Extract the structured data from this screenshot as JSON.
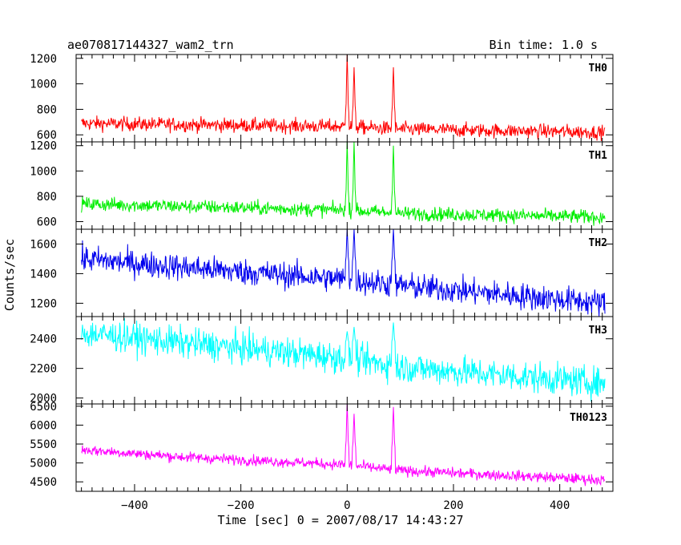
{
  "header": {
    "title": "ae070817144327_wam2_trn",
    "bin_time": "Bin time: 1.0 s"
  },
  "chart_data": {
    "type": "line",
    "x_axis": {
      "label": "Time [sec] 0 = 2007/08/17 14:43:27",
      "range": [
        -510,
        500
      ],
      "ticks": [
        -400,
        -200,
        0,
        200,
        400
      ],
      "tick_labels": [
        "−400",
        "−200",
        "0",
        "200",
        "400"
      ],
      "minor_step": 20,
      "data_start": -500,
      "data_end": 485
    },
    "y_axis_label": "Counts/sec",
    "grid": false,
    "panels": [
      {
        "name": "TH0",
        "color": "#ff0000",
        "ylim": [
          545,
          1230
        ],
        "yticks": [
          600,
          800,
          1000,
          1200
        ],
        "ytick_labels": [
          "600",
          "800",
          "1000",
          "1200"
        ],
        "baseline": [
          [
            -500,
            690
          ],
          [
            -300,
            680
          ],
          [
            0,
            665
          ],
          [
            100,
            645
          ],
          [
            485,
            620
          ]
        ],
        "noise_sigma": 28,
        "spikes": [
          [
            0,
            1230
          ],
          [
            13,
            1130
          ],
          [
            87,
            1130
          ]
        ],
        "spike_floor": 770
      },
      {
        "name": "TH1",
        "color": "#00ee00",
        "ylim": [
          540,
          1230
        ],
        "yticks": [
          600,
          800,
          1000,
          1200
        ],
        "ytick_labels": [
          "600",
          "800",
          "1000",
          "1200"
        ],
        "baseline": [
          [
            -500,
            740
          ],
          [
            -300,
            720
          ],
          [
            0,
            690
          ],
          [
            100,
            665
          ],
          [
            485,
            635
          ]
        ],
        "noise_sigma": 28,
        "spikes": [
          [
            0,
            1230
          ],
          [
            13,
            1230
          ],
          [
            87,
            1200
          ]
        ],
        "spike_floor": 780
      },
      {
        "name": "TH2",
        "color": "#0000ee",
        "ylim": [
          1110,
          1700
        ],
        "yticks": [
          1200,
          1400,
          1600
        ],
        "ytick_labels": [
          "1200",
          "1400",
          "1600"
        ],
        "baseline": [
          [
            -500,
            1500
          ],
          [
            -300,
            1440
          ],
          [
            0,
            1360
          ],
          [
            100,
            1320
          ],
          [
            485,
            1200
          ]
        ],
        "noise_sigma": 45,
        "spikes": [
          [
            0,
            1700
          ],
          [
            13,
            1700
          ],
          [
            87,
            1700
          ]
        ],
        "spike_floor": 1480
      },
      {
        "name": "TH3",
        "color": "#00ffff",
        "ylim": [
          1960,
          2550
        ],
        "yticks": [
          2000,
          2200,
          2400
        ],
        "ytick_labels": [
          "2000",
          "2200",
          "2400"
        ],
        "baseline": [
          [
            -500,
            2440
          ],
          [
            -300,
            2370
          ],
          [
            0,
            2270
          ],
          [
            100,
            2210
          ],
          [
            485,
            2100
          ]
        ],
        "noise_sigma": 52,
        "spikes": [
          [
            0,
            2450
          ],
          [
            13,
            2480
          ],
          [
            87,
            2510
          ]
        ],
        "spike_floor": 2380
      },
      {
        "name": "TH0123",
        "color": "#ff00ff",
        "ylim": [
          4250,
          6560
        ],
        "yticks": [
          4500,
          5000,
          5500,
          6000,
          6500
        ],
        "ytick_labels": [
          "4500",
          "5000",
          "5500",
          "6000",
          "6500"
        ],
        "baseline": [
          [
            -500,
            5350
          ],
          [
            -300,
            5150
          ],
          [
            0,
            4950
          ],
          [
            100,
            4800
          ],
          [
            485,
            4550
          ]
        ],
        "noise_sigma": 70,
        "spikes": [
          [
            0,
            6560
          ],
          [
            13,
            6300
          ],
          [
            87,
            6480
          ]
        ],
        "spike_floor": 5400
      }
    ]
  }
}
